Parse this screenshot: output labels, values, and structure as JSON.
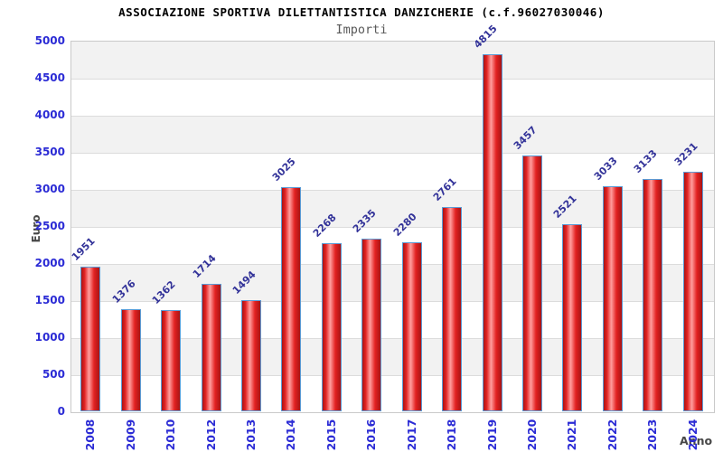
{
  "header": {
    "title": "ASSOCIAZIONE SPORTIVA DILETTANTISTICA DANZICHERIE (c.f.96027030046)",
    "subtitle": "Importi"
  },
  "chart_data": {
    "type": "bar",
    "title": "ASSOCIAZIONE SPORTIVA DILETTANTISTICA DANZICHERIE (c.f.96027030046)",
    "subtitle": "Importi",
    "xlabel": "Anno",
    "ylabel": "Euro",
    "categories": [
      "2008",
      "2009",
      "2010",
      "2012",
      "2013",
      "2014",
      "2015",
      "2016",
      "2017",
      "2018",
      "2019",
      "2020",
      "2021",
      "2022",
      "2023",
      "2024"
    ],
    "values": [
      1951,
      1376,
      1362,
      1714,
      1494,
      3025,
      2268,
      2335,
      2280,
      2761,
      4815,
      3457,
      2521,
      3033,
      3133,
      3231
    ],
    "ylim": [
      0,
      5000
    ],
    "ytick_step": 500,
    "grid": "horizontal-bands-alternating",
    "legend": "none",
    "bar_labels_rotation_deg": -45,
    "xtick_rotation_deg": -90
  },
  "colors": {
    "title_text": "#000000",
    "subtitle_text": "#595959",
    "axis_tick_text": "#2b2bd5",
    "bar_value_text": "#333399",
    "axis_title_text": "#474747",
    "band_gray": "#f2f2f2",
    "band_white": "#ffffff",
    "gridline": "#dcdcdc",
    "plot_border": "#c9c9c9",
    "bar_gradient_edge": "#a81414",
    "bar_gradient_mid": "#e32222",
    "bar_gradient_highlight": "#ff9e9e",
    "bar_border": "#5b9bd5"
  }
}
